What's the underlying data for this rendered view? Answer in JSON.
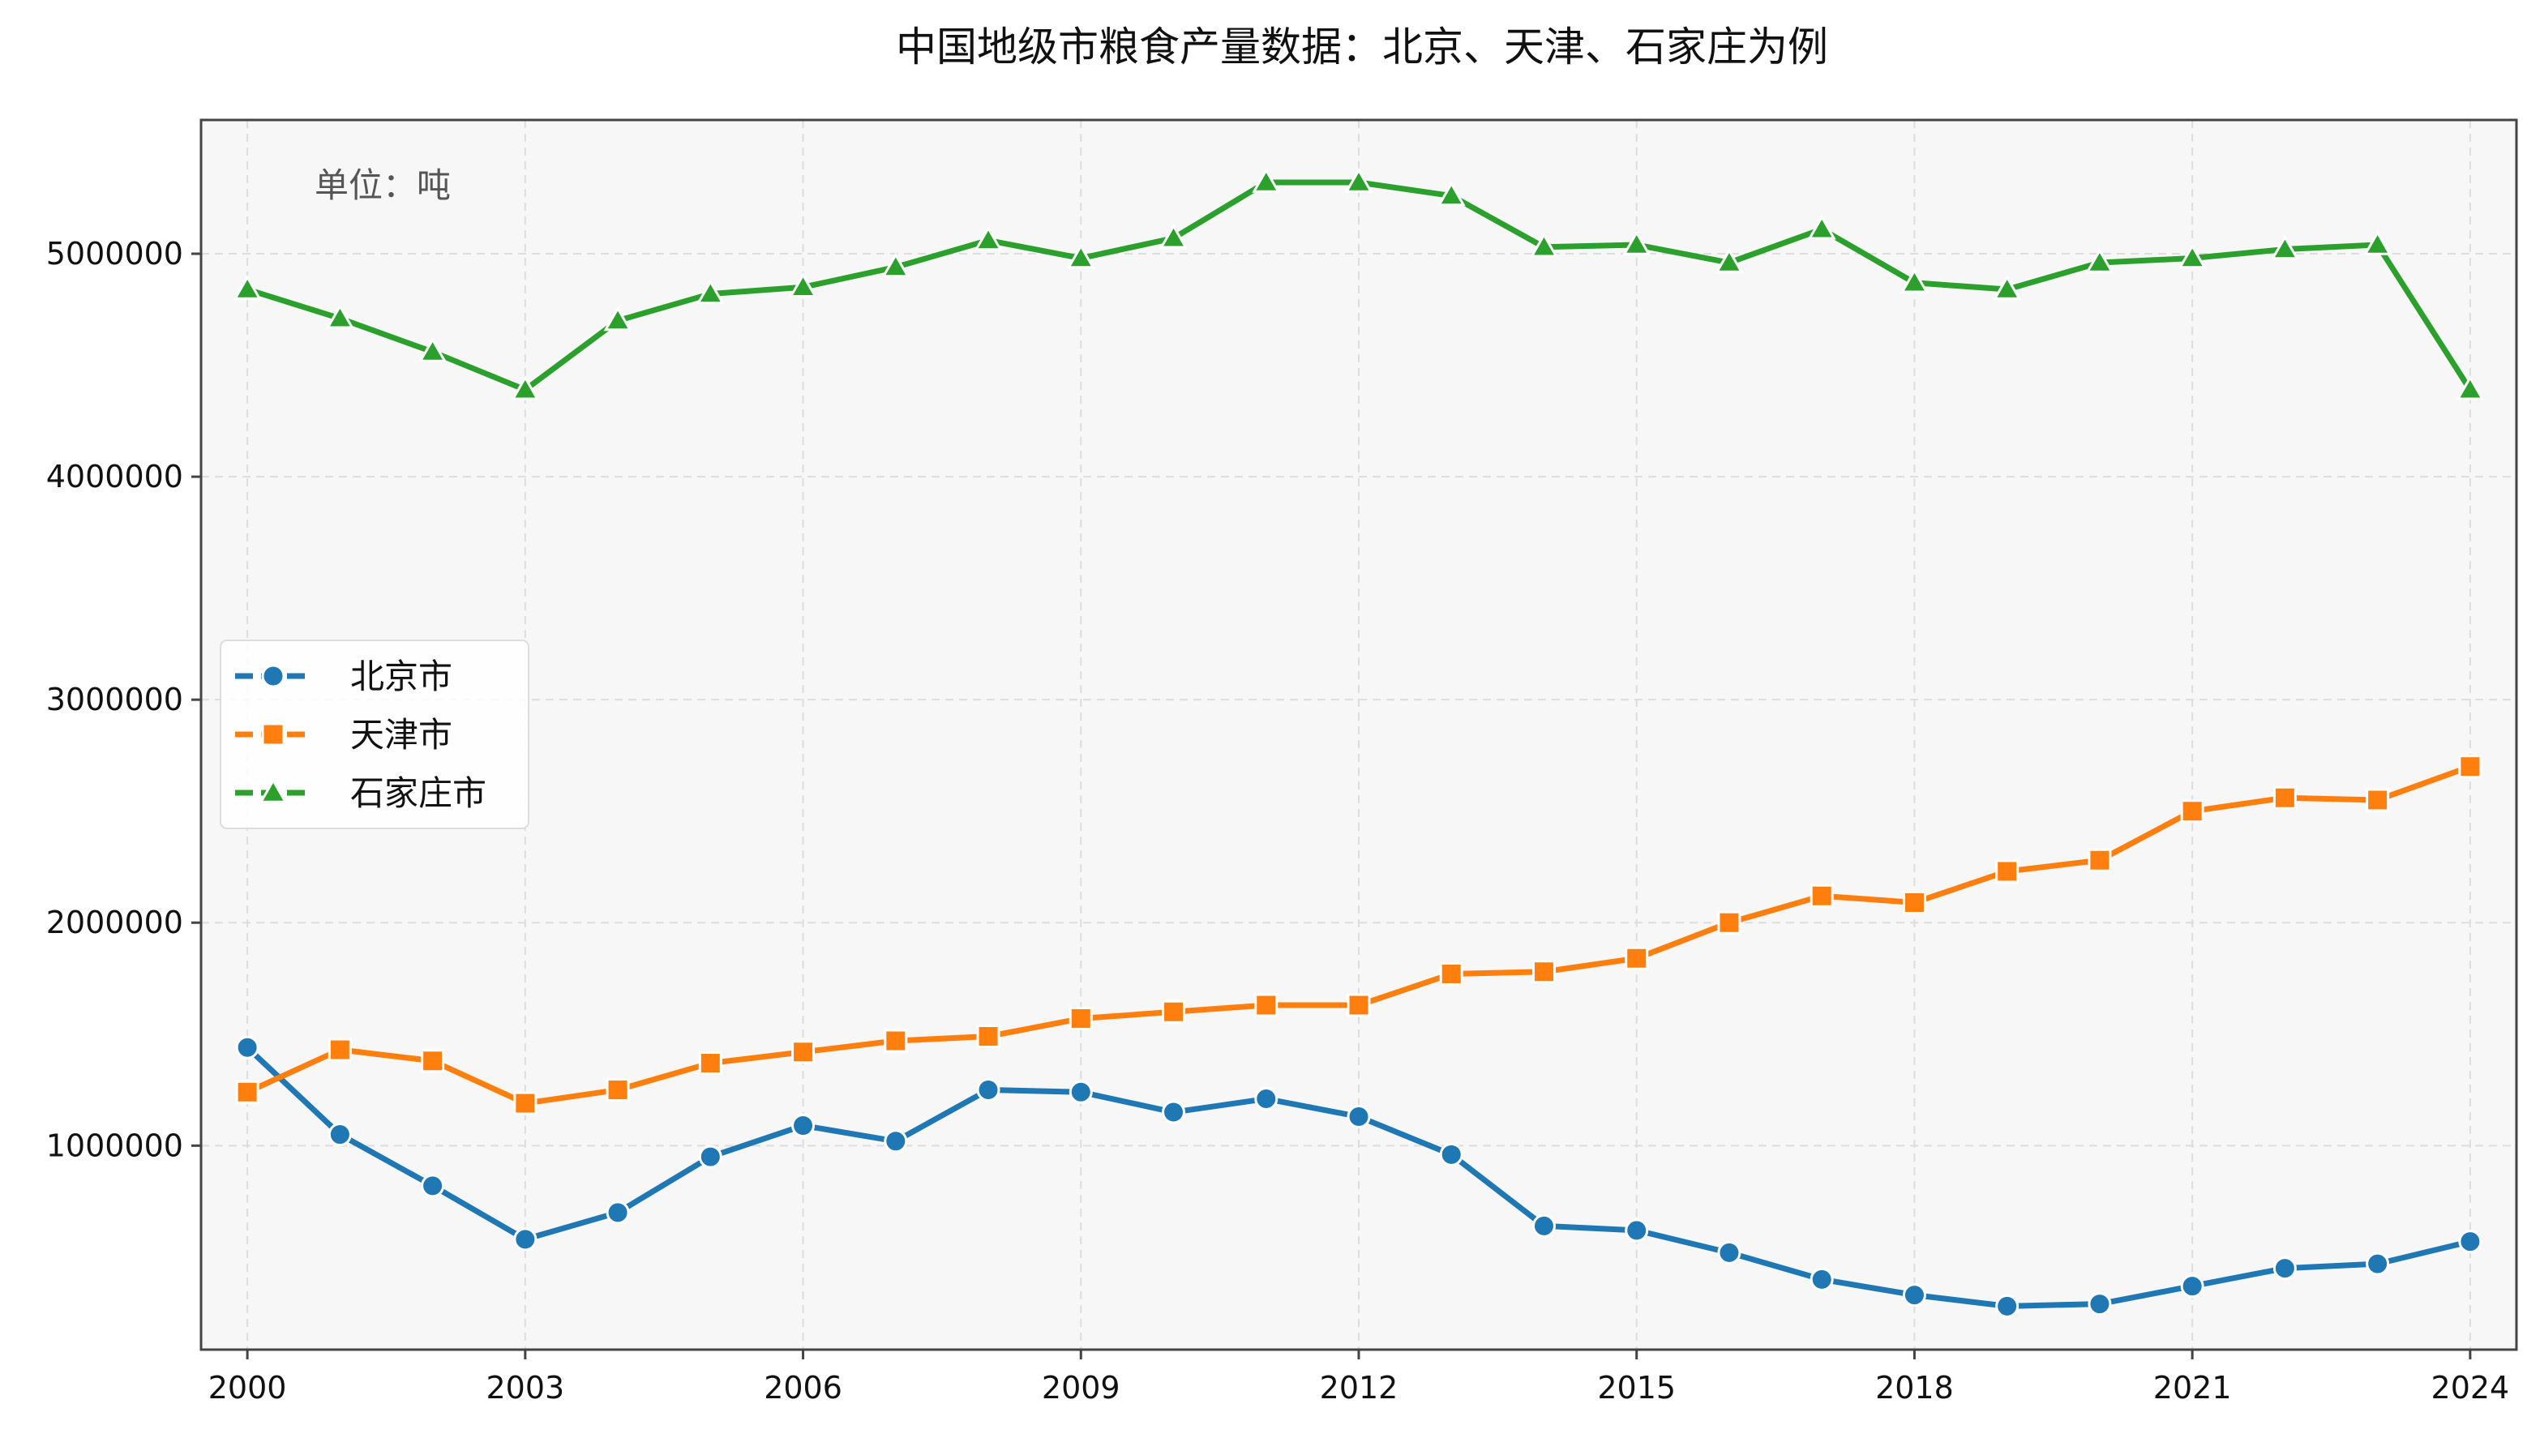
{
  "chart_data": {
    "type": "line",
    "title": "中国地级市粮食产量数据：北京、天津、石家庄为例",
    "annotation": "单位：吨",
    "xlabel": "",
    "ylabel": "",
    "x": [
      2000,
      2001,
      2002,
      2003,
      2004,
      2005,
      2006,
      2007,
      2008,
      2009,
      2010,
      2011,
      2012,
      2013,
      2014,
      2015,
      2016,
      2017,
      2018,
      2019,
      2020,
      2021,
      2022,
      2023,
      2024
    ],
    "x_ticks": [
      2000,
      2003,
      2006,
      2009,
      2012,
      2015,
      2018,
      2021,
      2024
    ],
    "y_ticks": [
      1000000,
      2000000,
      3000000,
      4000000,
      5000000
    ],
    "xlim": [
      1999.5,
      2024.5
    ],
    "ylim": [
      85000,
      5600000
    ],
    "grid": true,
    "legend_position": "center-left",
    "series": [
      {
        "name": "北京市",
        "color": "#1f77b4",
        "marker": "circle",
        "values": [
          1440000,
          1050000,
          820000,
          580000,
          700000,
          950000,
          1090000,
          1020000,
          1250000,
          1240000,
          1150000,
          1210000,
          1130000,
          960000,
          640000,
          620000,
          520000,
          400000,
          330000,
          280000,
          290000,
          370000,
          450000,
          470000,
          570000
        ]
      },
      {
        "name": "天津市",
        "color": "#ff7f0e",
        "marker": "square",
        "values": [
          1240000,
          1430000,
          1380000,
          1190000,
          1250000,
          1370000,
          1420000,
          1470000,
          1490000,
          1570000,
          1600000,
          1630000,
          1630000,
          1770000,
          1780000,
          1840000,
          2000000,
          2120000,
          2090000,
          2230000,
          2280000,
          2500000,
          2560000,
          2550000,
          2700000
        ]
      },
      {
        "name": "石家庄市",
        "color": "#2ca02c",
        "marker": "triangle",
        "values": [
          4840000,
          4710000,
          4560000,
          4390000,
          4700000,
          4820000,
          4850000,
          4940000,
          5060000,
          4980000,
          5070000,
          5320000,
          5320000,
          5260000,
          5030000,
          5040000,
          4960000,
          5110000,
          4870000,
          4840000,
          4960000,
          4980000,
          5020000,
          5040000,
          4390000
        ]
      }
    ]
  }
}
